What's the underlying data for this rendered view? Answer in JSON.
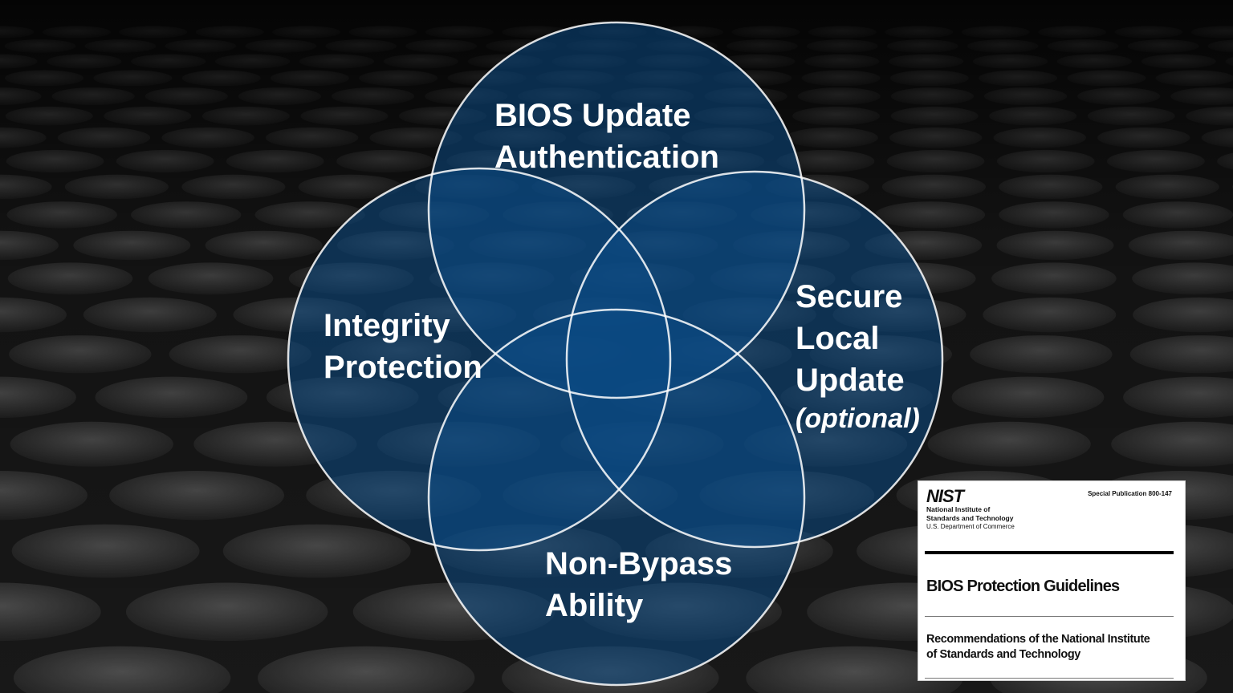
{
  "diagram": {
    "circles": [
      {
        "id": "top",
        "lines": [
          "BIOS Update",
          "Authentication"
        ]
      },
      {
        "id": "left",
        "lines": [
          "Integrity",
          "Protection"
        ]
      },
      {
        "id": "right",
        "lines": [
          "Secure",
          "Local",
          "Update"
        ],
        "note": "(optional)"
      },
      {
        "id": "bottom",
        "lines": [
          "Non-Bypass",
          "Ability"
        ]
      }
    ],
    "circle_fill": "#0b4a85",
    "circle_stroke": "#ffffff"
  },
  "document": {
    "logo": "NIST",
    "org_line1": "National Institute of",
    "org_line2": "Standards and Technology",
    "org_line3": "U.S. Department of Commerce",
    "publication": "Special Publication 800-147",
    "title": "BIOS Protection Guidelines",
    "subtitle_line1": "Recommendations of the National Institute",
    "subtitle_line2": "of Standards and Technology"
  }
}
